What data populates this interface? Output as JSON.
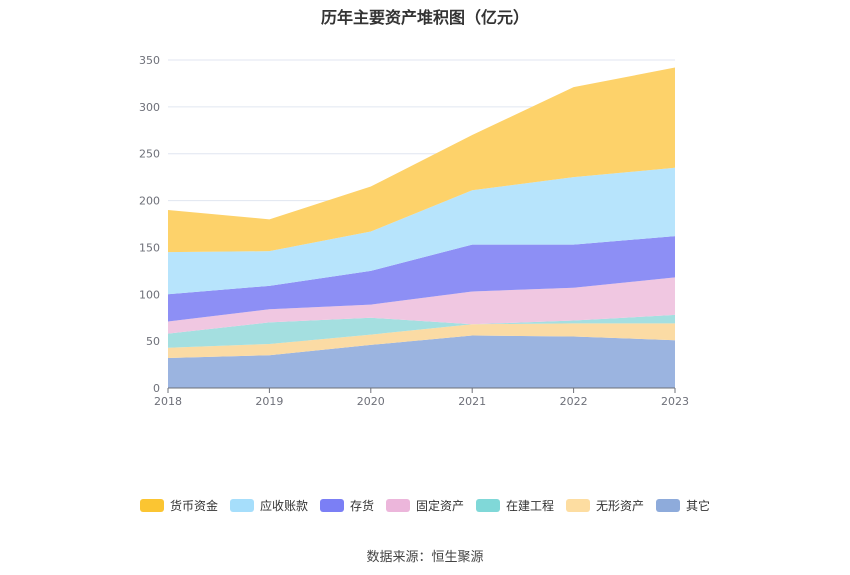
{
  "chart_data": {
    "type": "area",
    "stacked": true,
    "title": "历年主要资产堆积图（亿元）",
    "x": [
      "2018",
      "2019",
      "2020",
      "2021",
      "2022",
      "2023"
    ],
    "ylim": [
      0,
      350
    ],
    "yticks": [
      0,
      50,
      100,
      150,
      200,
      250,
      300,
      350
    ],
    "grid": true,
    "legend_position": "bottom",
    "series": [
      {
        "name": "其它",
        "color": "#9bb4e0",
        "values": [
          32,
          35,
          46,
          56,
          55,
          51
        ]
      },
      {
        "name": "无形资产",
        "color": "#fbdba4",
        "values": [
          11,
          12,
          11,
          12,
          14,
          18
        ]
      },
      {
        "name": "在建工程",
        "color": "#a4dfe0",
        "values": [
          15,
          23,
          18,
          0,
          3,
          9
        ]
      },
      {
        "name": "固定资产",
        "color": "#f0c7e1",
        "values": [
          13,
          14,
          14,
          35,
          35,
          40
        ]
      },
      {
        "name": "存货",
        "color": "#8d8ff5",
        "values": [
          29,
          25,
          36,
          50,
          46,
          44
        ]
      },
      {
        "name": "应收账款",
        "color": "#b7e4fc",
        "values": [
          45,
          37,
          42,
          58,
          72,
          73
        ]
      },
      {
        "name": "货币资金",
        "color": "#fdd26a",
        "values": [
          45,
          34,
          48,
          59,
          96,
          107
        ]
      }
    ],
    "legend": [
      {
        "name": "货币资金",
        "color": "#fbc532"
      },
      {
        "name": "应收账款",
        "color": "#a6defb"
      },
      {
        "name": "存货",
        "color": "#7b7ff5"
      },
      {
        "name": "固定资产",
        "color": "#ecb6db"
      },
      {
        "name": "在建工程",
        "color": "#80d8d8"
      },
      {
        "name": "无形资产",
        "color": "#fddda1"
      },
      {
        "name": "其它",
        "color": "#8eabdb"
      }
    ]
  },
  "source": "数据来源：恒生聚源"
}
